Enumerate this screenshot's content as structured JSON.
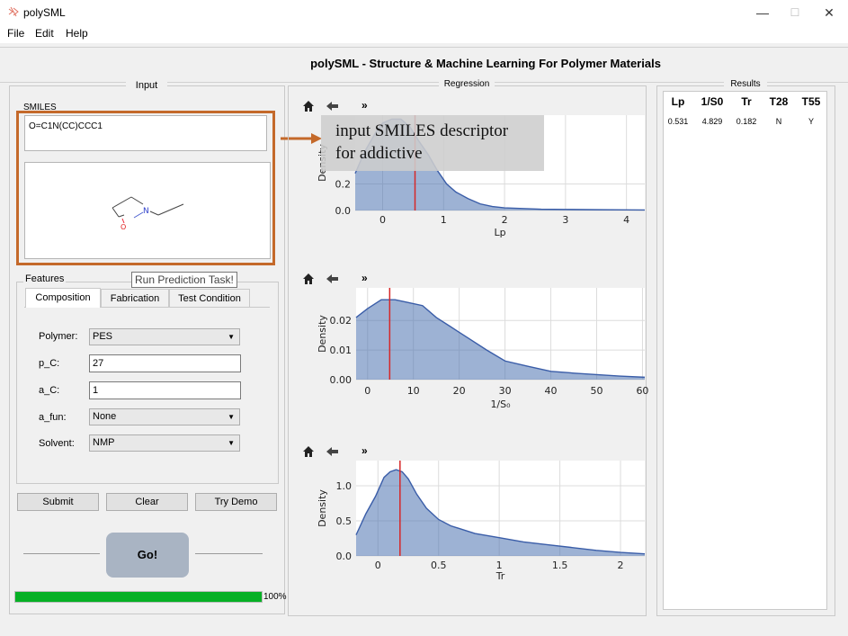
{
  "window": {
    "title": "polySML",
    "minimize": "—",
    "maximize": "☐",
    "close": "✕"
  },
  "menu": [
    "File",
    "Edit",
    "Help"
  ],
  "header_title": "polySML - Structure & Machine Learning For Polymer Materials",
  "input_panel": {
    "title": "Input",
    "smiles_label": "SMILES",
    "smiles_value": "O=C1N(CC)CCC1",
    "annotation_line1": "input SMILES descriptor",
    "annotation_line2": "for addictive",
    "tooltip": "Run Prediction Task!",
    "features_label": "Features",
    "tabs": [
      "Composition",
      "Fabrication",
      "Test Condition"
    ],
    "fields": {
      "polymer_label": "Polymer:",
      "polymer_value": "PES",
      "pc_label": "p_C:",
      "pc_value": "27",
      "ac_label": "a_C:",
      "ac_value": "1",
      "afun_label": "a_fun:",
      "afun_value": "None",
      "solvent_label": "Solvent:",
      "solvent_value": "NMP"
    },
    "buttons": {
      "submit": "Submit",
      "clear": "Clear",
      "demo": "Try Demo",
      "go": "Go!"
    },
    "progress": 100,
    "progress_text": "100%"
  },
  "molecule": {
    "atom_n": "N",
    "atom_o": "O"
  },
  "regression": {
    "title": "Regression",
    "toolbar": {
      "home": "home-icon",
      "back": "back-arrow-icon",
      "more": "»"
    }
  },
  "chart_data": [
    {
      "type": "area",
      "xlabel": "Lp",
      "ylabel": "Density",
      "xlim": [
        -0.45,
        4.3
      ],
      "ylim": [
        0,
        0.72
      ],
      "xticks": [
        0,
        1,
        2,
        3,
        4
      ],
      "yticks": [
        0.0,
        0.2
      ],
      "ytick_labels": [
        "0.0",
        "0.2"
      ],
      "x": [
        -0.45,
        -0.3,
        -0.1,
        0.0,
        0.15,
        0.3,
        0.45,
        0.6,
        0.75,
        0.9,
        1.05,
        1.2,
        1.4,
        1.6,
        1.8,
        2.0,
        2.3,
        2.6,
        3.0,
        3.5,
        4.0,
        4.3
      ],
      "y": [
        0.28,
        0.44,
        0.6,
        0.66,
        0.69,
        0.69,
        0.63,
        0.52,
        0.42,
        0.3,
        0.2,
        0.14,
        0.09,
        0.05,
        0.03,
        0.02,
        0.015,
        0.01,
        0.008,
        0.006,
        0.005,
        0.004
      ],
      "marker_x": 0.531,
      "color": "#4c72b0",
      "marker_color": "#d62728",
      "grid": true
    },
    {
      "type": "area",
      "xlabel": "1/S₀",
      "ylabel": "Density",
      "xlim": [
        -2.5,
        60.5
      ],
      "ylim": [
        0,
        0.031
      ],
      "xticks": [
        0,
        10,
        20,
        30,
        40,
        50,
        60
      ],
      "yticks": [
        0.0,
        0.01,
        0.02
      ],
      "ytick_labels": [
        "0.00",
        "0.01",
        "0.02"
      ],
      "x": [
        -2.5,
        0,
        3,
        6,
        9,
        12,
        15,
        18,
        22,
        26,
        30,
        35,
        40,
        45,
        50,
        55,
        60.5
      ],
      "y": [
        0.021,
        0.024,
        0.027,
        0.027,
        0.026,
        0.025,
        0.021,
        0.018,
        0.014,
        0.01,
        0.0063,
        0.0045,
        0.0028,
        0.0022,
        0.0017,
        0.0012,
        0.0008
      ],
      "marker_x": 4.829,
      "color": "#4c72b0",
      "marker_color": "#d62728",
      "grid": true
    },
    {
      "type": "area",
      "xlabel": "Tr",
      "ylabel": "Density",
      "xlim": [
        -0.18,
        2.2
      ],
      "ylim": [
        0,
        1.36
      ],
      "xticks": [
        0.0,
        0.5,
        1.0,
        1.5,
        2.0
      ],
      "yticks": [
        0.0,
        0.5,
        1.0
      ],
      "ytick_labels": [
        "0.0",
        "0.5",
        "1.0"
      ],
      "x": [
        -0.18,
        -0.1,
        -0.02,
        0.05,
        0.1,
        0.15,
        0.2,
        0.25,
        0.32,
        0.4,
        0.5,
        0.6,
        0.8,
        1.0,
        1.2,
        1.4,
        1.6,
        1.8,
        2.0,
        2.2
      ],
      "y": [
        0.3,
        0.6,
        0.85,
        1.12,
        1.2,
        1.23,
        1.2,
        1.1,
        0.88,
        0.68,
        0.52,
        0.43,
        0.32,
        0.26,
        0.2,
        0.16,
        0.12,
        0.08,
        0.05,
        0.03
      ],
      "marker_x": 0.182,
      "color": "#4c72b0",
      "marker_color": "#d62728",
      "grid": true
    }
  ],
  "results": {
    "title": "Results",
    "headers": [
      "Lp",
      "1/S0",
      "Tr",
      "T28",
      "T55"
    ],
    "row": [
      "0.531",
      "4.829",
      "0.182",
      "N",
      "Y"
    ]
  }
}
